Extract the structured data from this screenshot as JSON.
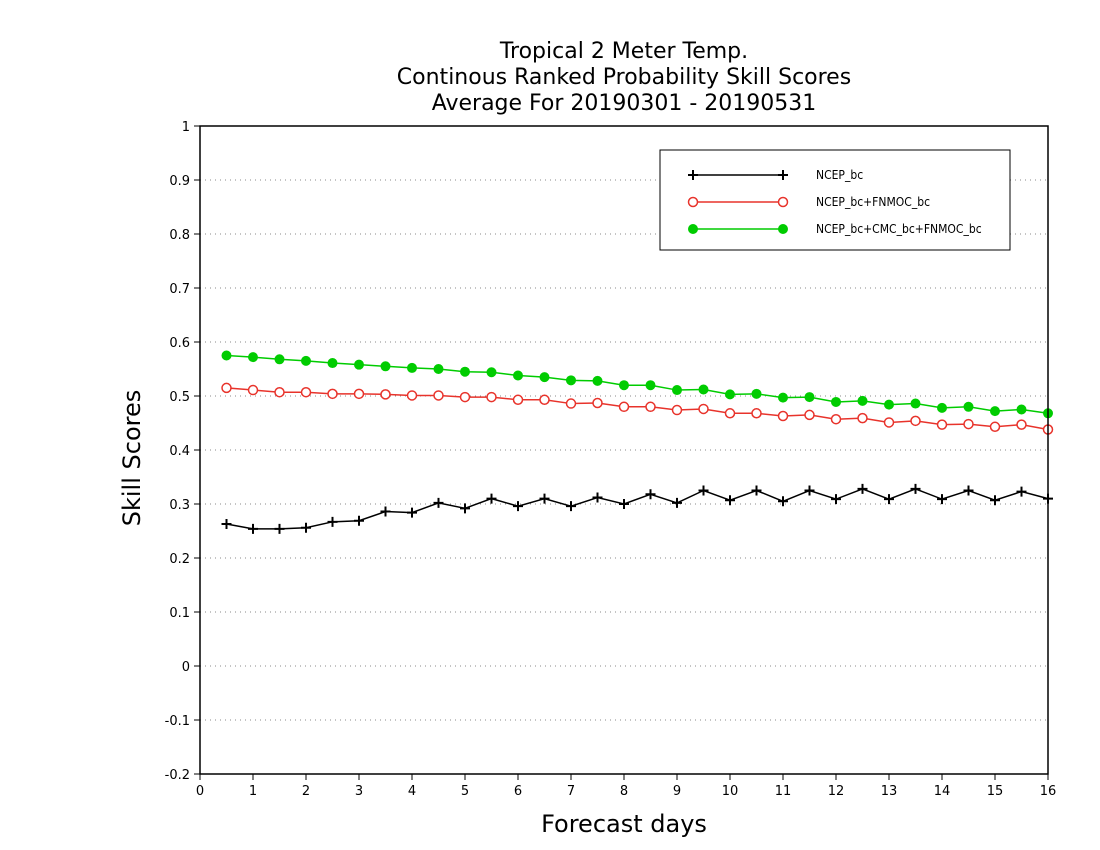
{
  "chart_data": {
    "type": "line",
    "title": [
      "Tropical 2 Meter Temp.",
      "Continous Ranked Probability Skill Scores",
      "Average For 20190301 - 20190531"
    ],
    "xlabel": "Forecast days",
    "ylabel": "Skill Scores",
    "xlim": [
      0,
      16
    ],
    "ylim": [
      -0.2,
      1
    ],
    "xticks": [
      "0",
      "1",
      "2",
      "3",
      "4",
      "5",
      "6",
      "7",
      "8",
      "9",
      "10",
      "11",
      "12",
      "13",
      "14",
      "15",
      "16"
    ],
    "yticks": [
      "-0.2",
      "-0.1",
      "0",
      "0.1",
      "0.2",
      "0.3",
      "0.4",
      "0.5",
      "0.6",
      "0.7",
      "0.8",
      "0.9",
      "1"
    ],
    "grid": "horizontal dotted",
    "legend_position": "top-right",
    "x": [
      0.5,
      1,
      1.5,
      2,
      2.5,
      3,
      3.5,
      4,
      4.5,
      5,
      5.5,
      6,
      6.5,
      7,
      7.5,
      8,
      8.5,
      9,
      9.5,
      10,
      10.5,
      11,
      11.5,
      12,
      12.5,
      13,
      13.5,
      14,
      14.5,
      15,
      15.5,
      16
    ],
    "series": [
      {
        "name": "NCEP_bc",
        "color": "#000000",
        "marker": "plus",
        "values": [
          0.263,
          0.254,
          0.254,
          0.256,
          0.267,
          0.269,
          0.286,
          0.284,
          0.302,
          0.292,
          0.31,
          0.296,
          0.31,
          0.296,
          0.312,
          0.3,
          0.318,
          0.302,
          0.325,
          0.307,
          0.325,
          0.305,
          0.325,
          0.309,
          0.328,
          0.309,
          0.328,
          0.309,
          0.325,
          0.307,
          0.323,
          0.31
        ]
      },
      {
        "name": "NCEP_bc+FNMOC_bc",
        "color": "#e8332b",
        "marker": "open-circle",
        "values": [
          0.515,
          0.511,
          0.507,
          0.507,
          0.504,
          0.504,
          0.503,
          0.501,
          0.501,
          0.498,
          0.498,
          0.493,
          0.493,
          0.486,
          0.487,
          0.48,
          0.48,
          0.474,
          0.476,
          0.468,
          0.468,
          0.463,
          0.465,
          0.457,
          0.459,
          0.451,
          0.454,
          0.447,
          0.448,
          0.443,
          0.447,
          0.438
        ]
      },
      {
        "name": "NCEP_bc+CMC_bc+FNMOC_bc",
        "color": "#00cc00",
        "marker": "filled-circle",
        "values": [
          0.575,
          0.572,
          0.568,
          0.565,
          0.561,
          0.558,
          0.555,
          0.552,
          0.55,
          0.545,
          0.544,
          0.538,
          0.535,
          0.529,
          0.528,
          0.52,
          0.52,
          0.511,
          0.512,
          0.503,
          0.504,
          0.497,
          0.498,
          0.489,
          0.491,
          0.484,
          0.486,
          0.478,
          0.48,
          0.472,
          0.475,
          0.468
        ]
      }
    ]
  }
}
